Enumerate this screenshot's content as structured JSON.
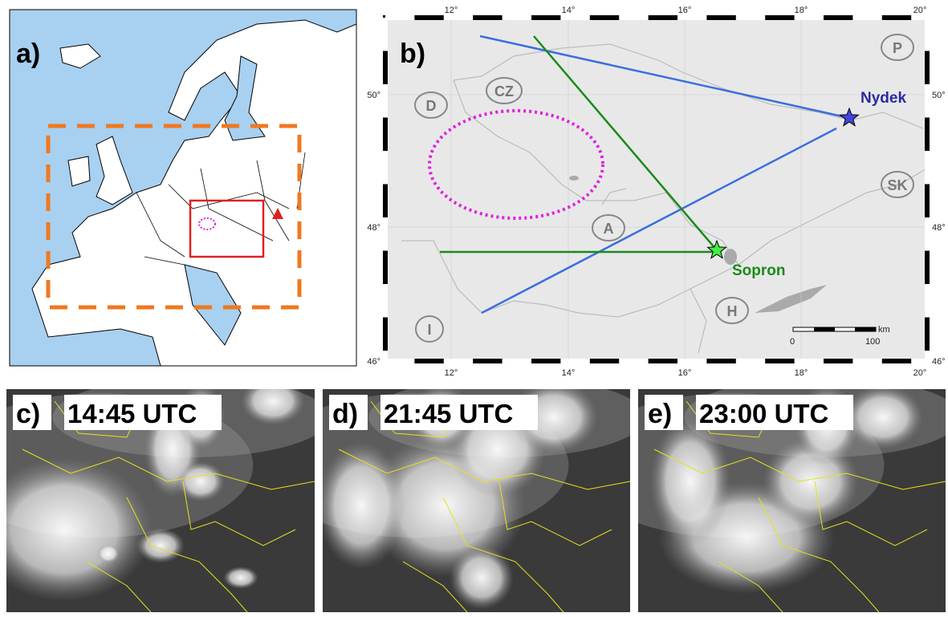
{
  "panels": {
    "a": {
      "label": "a)"
    },
    "b": {
      "label": "b)",
      "lon_ticks": [
        "12°",
        "14°",
        "16°",
        "18°",
        "20°"
      ],
      "lat_ticks": [
        "50°",
        "48°",
        "46°"
      ],
      "countries": [
        "D",
        "CZ",
        "P",
        "SK",
        "A",
        "H",
        "I"
      ],
      "sites": [
        "Nydek",
        "Sopron"
      ],
      "scale": {
        "unit": "km",
        "start": "0",
        "end": "100"
      }
    },
    "c": {
      "label": "c)",
      "time": "14:45 UTC"
    },
    "d": {
      "label": "d)",
      "time": "21:45 UTC"
    },
    "e": {
      "label": "e)",
      "time": "23:00 UTC"
    }
  }
}
